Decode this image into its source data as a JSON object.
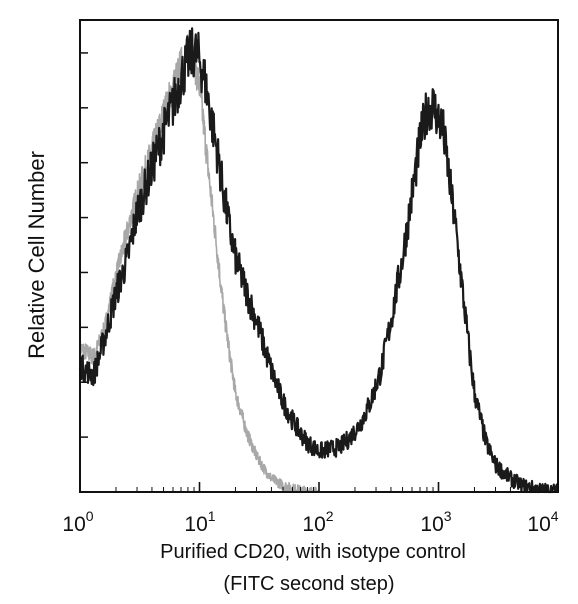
{
  "chart_data": {
    "type": "line",
    "title": "",
    "xlabel": "Purified CD20, with isotype control",
    "xlabel_line2": "(FITC second step)",
    "ylabel": "Relative Cell Number",
    "xscale": "log",
    "xlim": [
      1,
      10000
    ],
    "ylim": [
      0,
      1
    ],
    "grid": false,
    "legend": "none",
    "x_ticks": [
      {
        "base": "10",
        "exp": "0",
        "value": 1
      },
      {
        "base": "10",
        "exp": "1",
        "value": 10
      },
      {
        "base": "10",
        "exp": "2",
        "value": 100
      },
      {
        "base": "10",
        "exp": "3",
        "value": 1000
      },
      {
        "base": "10",
        "exp": "4",
        "value": 10000
      }
    ],
    "y_tick_count": 8,
    "series": [
      {
        "color": "#1a1a1a",
        "style": "noisy-dark",
        "x": [
          1,
          1.3,
          1.6,
          2,
          2.5,
          3,
          4,
          5,
          6,
          7,
          8,
          9,
          10,
          11,
          12,
          14,
          16,
          18,
          20,
          25,
          30,
          35,
          40,
          50,
          60,
          70,
          80,
          100,
          120,
          150,
          180,
          220,
          270,
          330,
          400,
          500,
          600,
          700,
          800,
          900,
          1000,
          1100,
          1200,
          1400,
          1600,
          1800,
          2000,
          2500,
          3000,
          4000,
          5000,
          7000,
          10000
        ],
        "y": [
          0.28,
          0.26,
          0.34,
          0.44,
          0.52,
          0.62,
          0.72,
          0.8,
          0.86,
          0.92,
          0.96,
          0.98,
          0.96,
          0.92,
          0.86,
          0.76,
          0.66,
          0.58,
          0.52,
          0.44,
          0.38,
          0.32,
          0.27,
          0.2,
          0.16,
          0.13,
          0.11,
          0.09,
          0.095,
          0.1,
          0.12,
          0.15,
          0.2,
          0.27,
          0.38,
          0.52,
          0.66,
          0.78,
          0.85,
          0.86,
          0.83,
          0.8,
          0.72,
          0.58,
          0.44,
          0.32,
          0.22,
          0.11,
          0.06,
          0.03,
          0.015,
          0.005,
          0.002
        ]
      },
      {
        "color": "#a8a8a8",
        "style": "noisy-light",
        "x": [
          1,
          1.3,
          1.6,
          2,
          2.5,
          3,
          4,
          5,
          6,
          7,
          8,
          9,
          10,
          11,
          12,
          14,
          16,
          18,
          20,
          25,
          30,
          35,
          40,
          50,
          60,
          70,
          80,
          100
        ],
        "y": [
          0.32,
          0.3,
          0.36,
          0.48,
          0.58,
          0.66,
          0.76,
          0.84,
          0.9,
          0.95,
          0.98,
          0.96,
          0.9,
          0.8,
          0.7,
          0.54,
          0.4,
          0.3,
          0.22,
          0.13,
          0.08,
          0.05,
          0.03,
          0.015,
          0.008,
          0.004,
          0.002,
          0
        ]
      }
    ]
  }
}
